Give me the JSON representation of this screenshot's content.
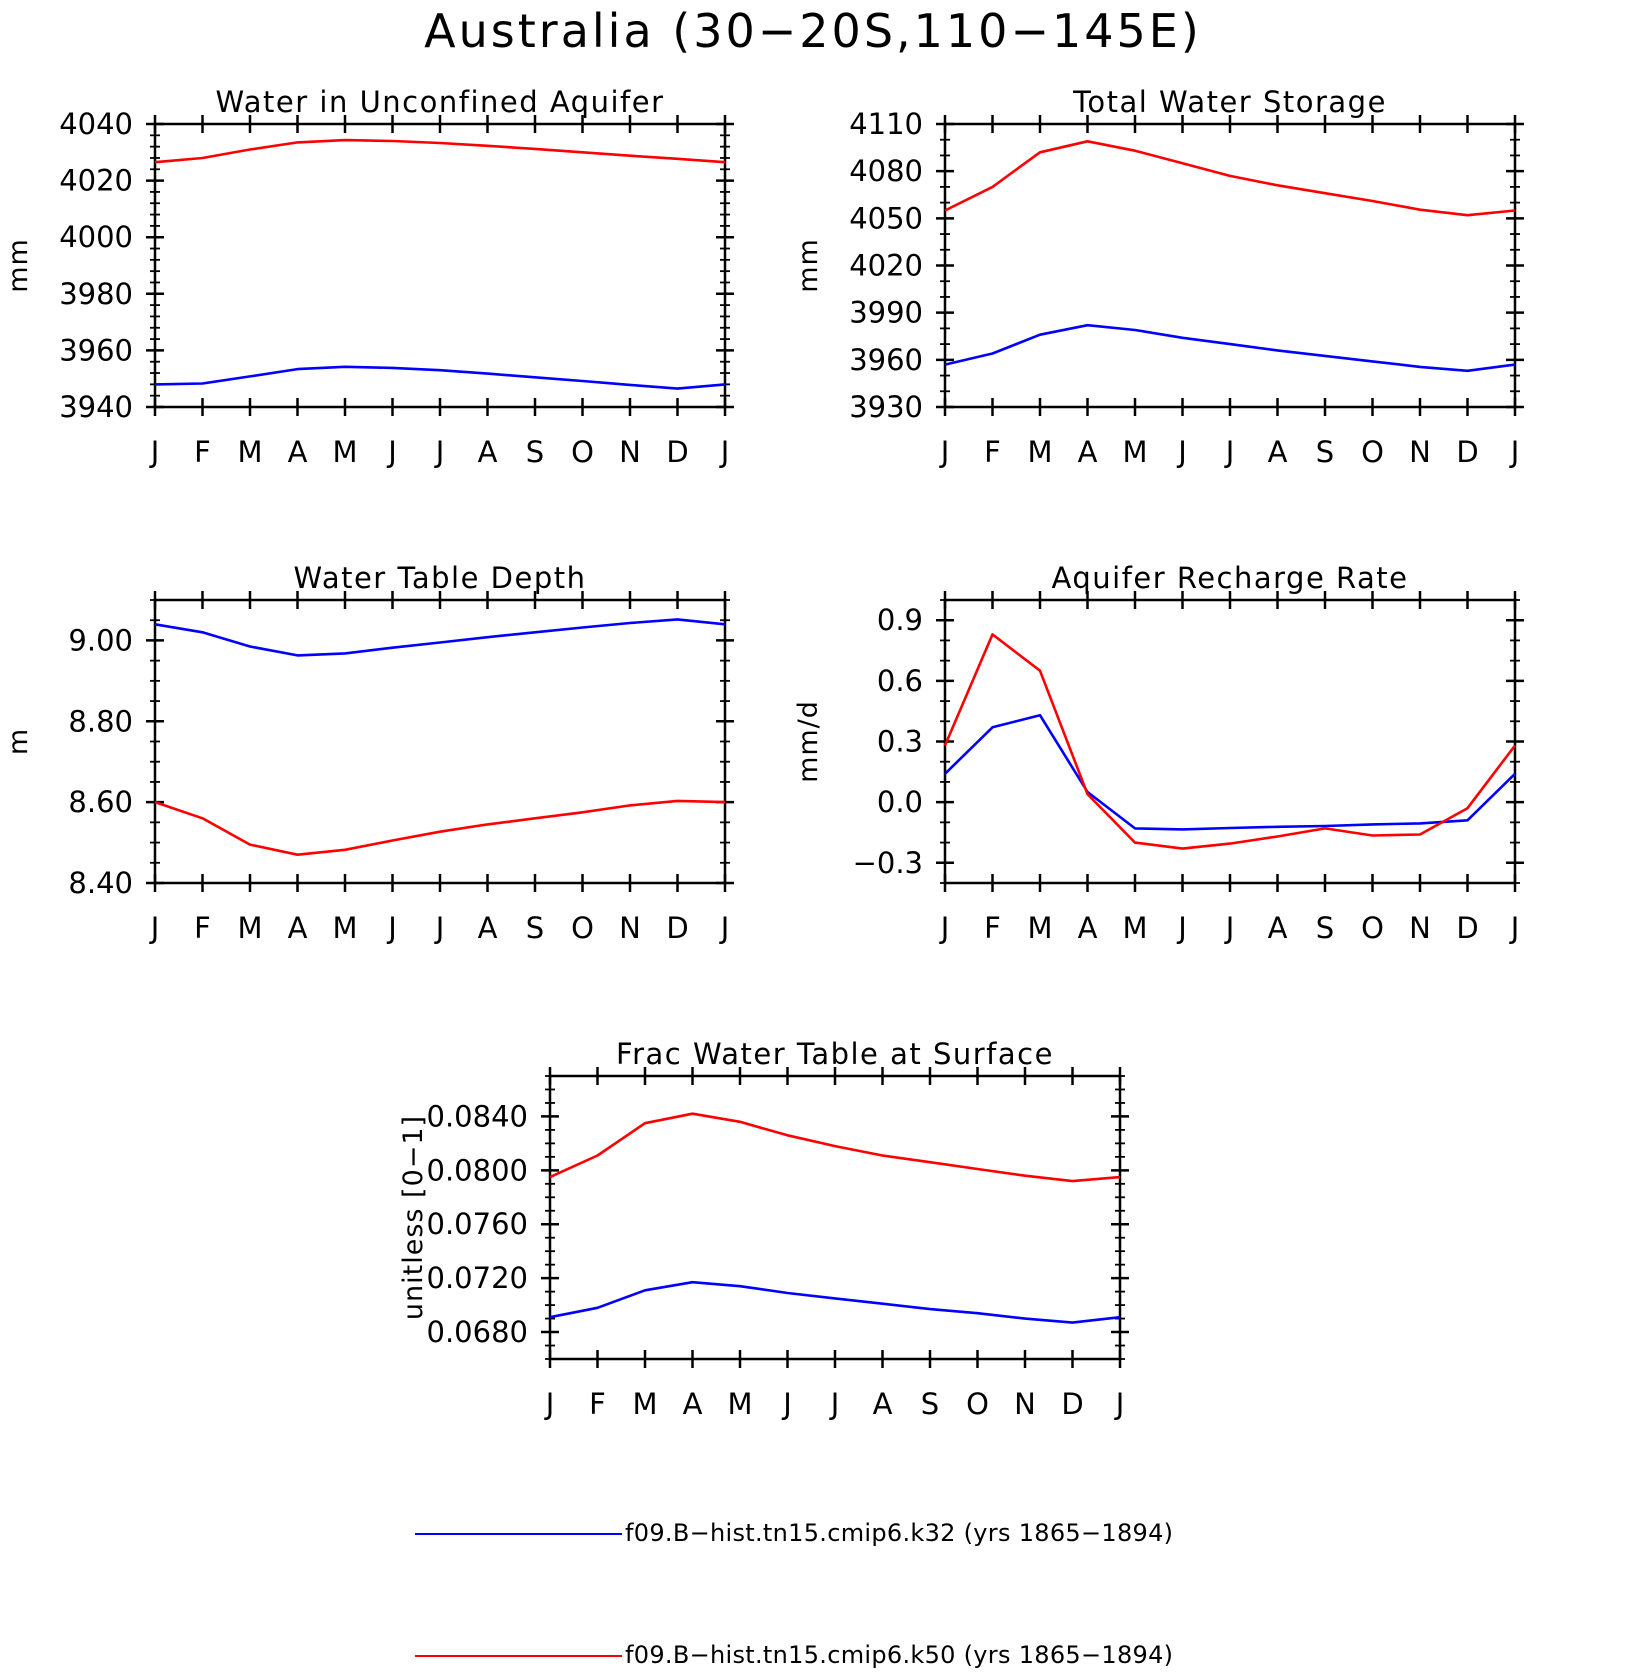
{
  "figure": {
    "title": "Australia (30−20S,110−145E)"
  },
  "months": [
    "J",
    "F",
    "M",
    "A",
    "M",
    "J",
    "J",
    "A",
    "S",
    "O",
    "N",
    "D",
    "J"
  ],
  "legend": [
    {
      "label": "f09.B−hist.tn15.cmip6.k32 (yrs 1865−1894)",
      "color": "#0000ff"
    },
    {
      "label": "f09.B−hist.tn15.cmip6.k50 (yrs 1865−1894)",
      "color": "#ff0000"
    }
  ],
  "chart_data": [
    {
      "type": "line",
      "title": "Water in Unconfined Aquifer",
      "ylabel": "mm",
      "ylim": [
        3940,
        4040
      ],
      "yticks": [
        3940,
        3960,
        3980,
        4000,
        4020,
        4040
      ],
      "ytick_labels": [
        "3940",
        "3960",
        "3980",
        "4000",
        "4020",
        "4040"
      ],
      "yminor": 5,
      "categories": [
        "J",
        "F",
        "M",
        "A",
        "M",
        "J",
        "J",
        "A",
        "S",
        "O",
        "N",
        "D",
        "J"
      ],
      "series": [
        {
          "name": "f09.B−hist.tn15.cmip6.k32 (yrs 1865−1894)",
          "color": "#0000ff",
          "values": [
            3948,
            3948.3,
            3950.8,
            3953.4,
            3954.2,
            3953.8,
            3953,
            3951.8,
            3950.5,
            3949.2,
            3947.8,
            3946.5,
            3948
          ]
        },
        {
          "name": "f09.B−hist.tn15.cmip6.k50 (yrs 1865−1894)",
          "color": "#ff0000",
          "values": [
            4026.5,
            4028,
            4031,
            4033.5,
            4034.3,
            4034,
            4033.3,
            4032.3,
            4031.2,
            4030,
            4028.8,
            4027.7,
            4026.5
          ]
        }
      ]
    },
    {
      "type": "line",
      "title": "Total Water Storage",
      "ylabel": "mm",
      "ylim": [
        3930,
        4110
      ],
      "yticks": [
        3930,
        3960,
        3990,
        4020,
        4050,
        4080,
        4110
      ],
      "ytick_labels": [
        "3930",
        "3960",
        "3990",
        "4020",
        "4050",
        "4080",
        "4110"
      ],
      "yminor": 3,
      "categories": [
        "J",
        "F",
        "M",
        "A",
        "M",
        "J",
        "J",
        "A",
        "S",
        "O",
        "N",
        "D",
        "J"
      ],
      "series": [
        {
          "name": "f09.B−hist.tn15.cmip6.k32 (yrs 1865−1894)",
          "color": "#0000ff",
          "values": [
            3957,
            3964,
            3976,
            3982,
            3979,
            3974,
            3970,
            3966,
            3962.5,
            3959,
            3955.5,
            3953,
            3957
          ]
        },
        {
          "name": "f09.B−hist.tn15.cmip6.k50 (yrs 1865−1894)",
          "color": "#ff0000",
          "values": [
            4055,
            4070,
            4092,
            4099,
            4093,
            4085,
            4077,
            4071,
            4066,
            4061,
            4055.5,
            4052,
            4055
          ]
        }
      ]
    },
    {
      "type": "line",
      "title": "Water Table Depth",
      "ylabel": "m",
      "ylim": [
        8.4,
        9.1
      ],
      "yticks": [
        8.4,
        8.6,
        8.8,
        9.0
      ],
      "ytick_labels": [
        "8.40",
        "8.60",
        "8.80",
        "9.00"
      ],
      "yminor": 4,
      "categories": [
        "J",
        "F",
        "M",
        "A",
        "M",
        "J",
        "J",
        "A",
        "S",
        "O",
        "N",
        "D",
        "J"
      ],
      "series": [
        {
          "name": "f09.B−hist.tn15.cmip6.k32 (yrs 1865−1894)",
          "color": "#0000ff",
          "values": [
            9.04,
            9.02,
            8.985,
            8.963,
            8.968,
            8.982,
            8.995,
            9.008,
            9.02,
            9.032,
            9.043,
            9.052,
            9.04
          ]
        },
        {
          "name": "f09.B−hist.tn15.cmip6.k50 (yrs 1865−1894)",
          "color": "#ff0000",
          "values": [
            8.6,
            8.56,
            8.495,
            8.47,
            8.482,
            8.505,
            8.527,
            8.545,
            8.56,
            8.575,
            8.592,
            8.603,
            8.6
          ]
        }
      ]
    },
    {
      "type": "line",
      "title": "Aquifer Recharge Rate",
      "ylabel": "mm/d",
      "ylim": [
        -0.4,
        1.0
      ],
      "yticks": [
        -0.3,
        0.0,
        0.3,
        0.6,
        0.9
      ],
      "ytick_labels": [
        "−0.3",
        "0.0",
        "0.3",
        "0.6",
        "0.9"
      ],
      "yminor": 3,
      "categories": [
        "J",
        "F",
        "M",
        "A",
        "M",
        "J",
        "J",
        "A",
        "S",
        "O",
        "N",
        "D",
        "J"
      ],
      "series": [
        {
          "name": "f09.B−hist.tn15.cmip6.k32 (yrs 1865−1894)",
          "color": "#0000ff",
          "values": [
            0.14,
            0.37,
            0.43,
            0.05,
            -0.13,
            -0.135,
            -0.128,
            -0.122,
            -0.118,
            -0.11,
            -0.105,
            -0.09,
            0.14
          ]
        },
        {
          "name": "f09.B−hist.tn15.cmip6.k50 (yrs 1865−1894)",
          "color": "#ff0000",
          "values": [
            0.28,
            0.83,
            0.65,
            0.04,
            -0.2,
            -0.23,
            -0.205,
            -0.17,
            -0.13,
            -0.165,
            -0.16,
            -0.03,
            0.28
          ]
        }
      ]
    },
    {
      "type": "line",
      "title": "Frac Water Table at Surface",
      "ylabel": "unitless [0−1]",
      "ylim": [
        0.066,
        0.087
      ],
      "yticks": [
        0.068,
        0.072,
        0.076,
        0.08,
        0.084
      ],
      "ytick_labels": [
        "0.0680",
        "0.0720",
        "0.0760",
        "0.0800",
        "0.0840"
      ],
      "yminor": 4,
      "categories": [
        "J",
        "F",
        "M",
        "A",
        "M",
        "J",
        "J",
        "A",
        "S",
        "O",
        "N",
        "D",
        "J"
      ],
      "series": [
        {
          "name": "f09.B−hist.tn15.cmip6.k32 (yrs 1865−1894)",
          "color": "#0000ff",
          "values": [
            0.0691,
            0.0698,
            0.0711,
            0.0717,
            0.0714,
            0.0709,
            0.0705,
            0.0701,
            0.0697,
            0.0694,
            0.069,
            0.0687,
            0.0691
          ]
        },
        {
          "name": "f09.B−hist.tn15.cmip6.k50 (yrs 1865−1894)",
          "color": "#ff0000",
          "values": [
            0.0795,
            0.0811,
            0.0835,
            0.0842,
            0.0836,
            0.0826,
            0.0818,
            0.0811,
            0.0806,
            0.0801,
            0.0796,
            0.0792,
            0.0795
          ]
        }
      ]
    }
  ]
}
